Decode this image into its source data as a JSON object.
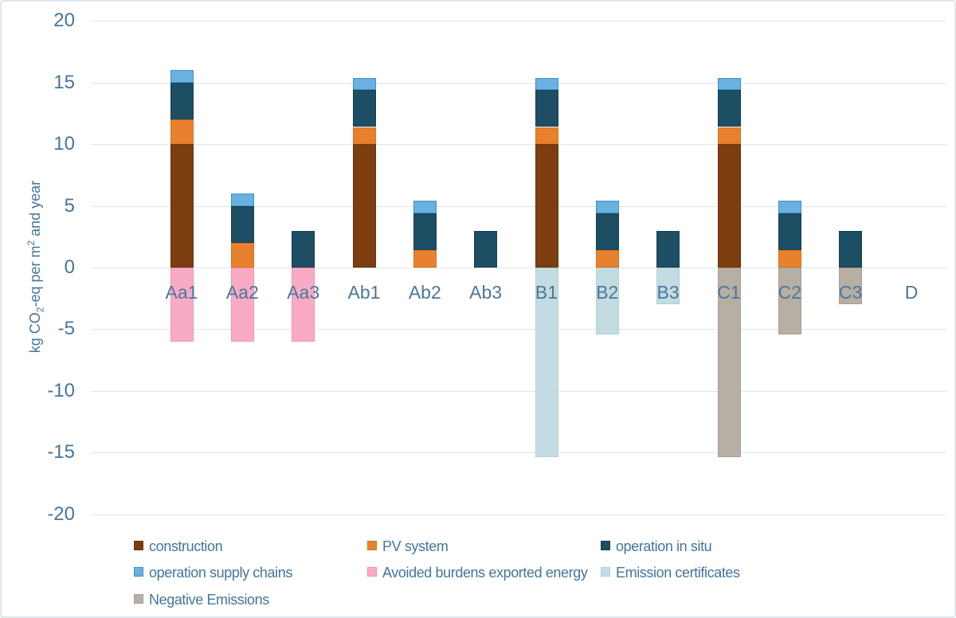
{
  "chart_data": {
    "type": "bar",
    "stacked": true,
    "title": "",
    "ylabel": "kg CO2-eq per m2 and year",
    "xlabel": "",
    "grid": true,
    "legend_position": "bottom",
    "ylim": [
      -20,
      20
    ],
    "yticks": [
      20,
      15,
      10,
      5,
      0,
      -5,
      -10,
      -15,
      -20
    ],
    "categories": [
      "Aa1",
      "Aa2",
      "Aa3",
      "Ab1",
      "Ab2",
      "Ab3",
      "B1",
      "B2",
      "B3",
      "C1",
      "C2",
      "C3",
      "D"
    ],
    "series": [
      {
        "name": "construction",
        "color": "#7C3D11",
        "border": "#6A3309",
        "values": [
          10,
          0,
          0,
          10,
          0,
          0,
          10,
          0,
          0,
          10,
          0,
          0,
          0
        ]
      },
      {
        "name": "PV system",
        "color": "#E8812D",
        "border": "#D8721F",
        "values": [
          2,
          2,
          0,
          1.4,
          1.4,
          0,
          1.4,
          1.4,
          0,
          1.4,
          1.4,
          0,
          0
        ]
      },
      {
        "name": "operation in situ",
        "color": "#1D4E63",
        "border": "#173F52",
        "values": [
          3,
          3,
          3,
          3,
          3,
          3,
          3,
          3,
          3,
          3,
          3,
          3,
          0
        ]
      },
      {
        "name": "operation supply chains",
        "color": "#69B2DF",
        "border": "#3E8FC7",
        "values": [
          1,
          1,
          0,
          1,
          1,
          0,
          1,
          1,
          0,
          1,
          1,
          0,
          0
        ]
      },
      {
        "name": "Avoided burdens exported energy",
        "color": "#F9ABC6",
        "border": "#F391B4",
        "values": [
          -6,
          -6,
          -6,
          0,
          0,
          0,
          0,
          0,
          0,
          0,
          0,
          0,
          0
        ]
      },
      {
        "name": "Emission certificates",
        "color": "#C3DCE1",
        "border": "#B2D0D8",
        "values": [
          0,
          0,
          0,
          0,
          0,
          0,
          -15.4,
          -5.4,
          -3,
          0,
          0,
          0,
          0
        ]
      },
      {
        "name": "Negative Emissions",
        "color": "#B7AEA4",
        "border": "#A89F94",
        "values": [
          0,
          0,
          0,
          0,
          0,
          0,
          0,
          0,
          0,
          -15.4,
          -5.4,
          -3,
          0
        ]
      }
    ]
  },
  "y_axis": {
    "label_prefix": "kg CO",
    "label_sub": "2",
    "label_mid": "-eq per m",
    "label_sup": "2",
    "label_suffix": " and year"
  },
  "colors": {
    "axis_text": "#44759D",
    "category_text": "#4A779C",
    "gridline": "#E0E5E8",
    "chart_border": "#E1E7EA",
    "background": "#FFFFFF"
  }
}
